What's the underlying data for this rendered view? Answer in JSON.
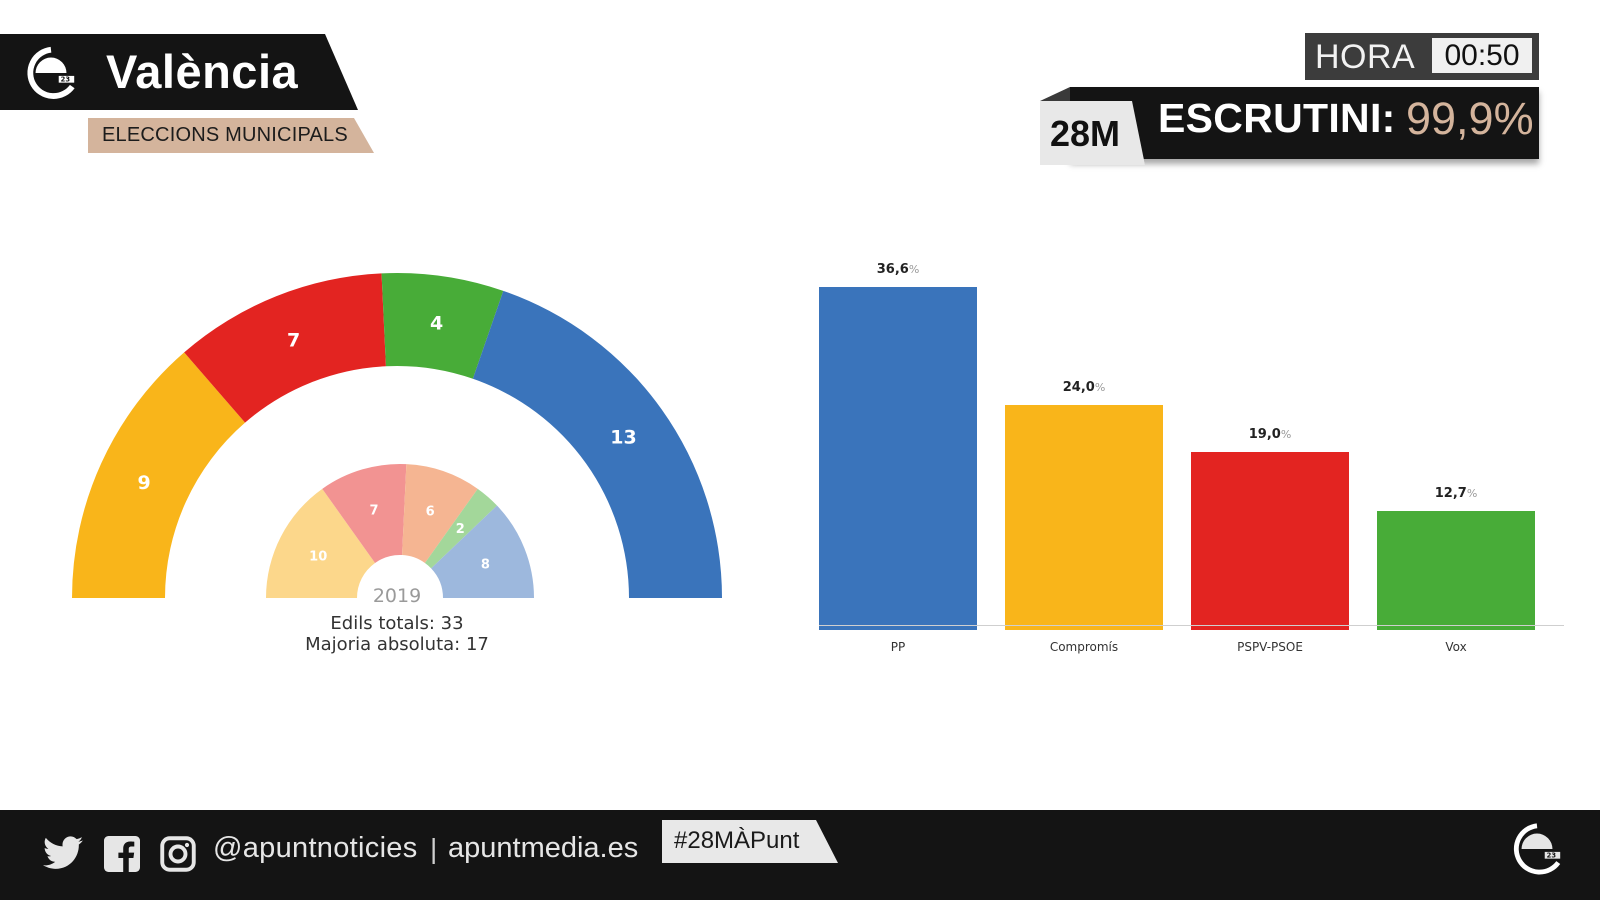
{
  "header": {
    "city": "València",
    "subtitle": "ELECCIONS MUNICIPALS",
    "hora_label": "HORA",
    "hora_time": "00:50",
    "election_tag": "28M",
    "escrutini_label": "ESCRUTINI:",
    "escrutini_value": "99,9%"
  },
  "hemicycle": {
    "current": [
      {
        "party": "Compromís",
        "seats": 9,
        "color": "#f9b51a"
      },
      {
        "party": "PSPV-PSOE",
        "seats": 7,
        "color": "#e32421"
      },
      {
        "party": "Vox",
        "seats": 4,
        "color": "#48ac38"
      },
      {
        "party": "PP",
        "seats": 13,
        "color": "#3a74bb"
      }
    ],
    "previous": [
      {
        "seats": 10,
        "color": "#fcd78b"
      },
      {
        "seats": 7,
        "color": "#f29392"
      },
      {
        "seats": 6,
        "color": "#f5b592"
      },
      {
        "seats": 2,
        "color": "#a3d79a"
      },
      {
        "seats": 8,
        "color": "#9db8dd"
      }
    ],
    "previous_year": "2019",
    "totals_text": "Edils totals: 33",
    "majority_text": "Majoria absoluta: 17"
  },
  "chart_data": [
    {
      "type": "pie",
      "title": "Regidors 2023 (hemicicle)",
      "categories": [
        "Compromís",
        "PSPV-PSOE",
        "Vox",
        "PP"
      ],
      "values": [
        9,
        7,
        4,
        13
      ],
      "total": 33,
      "majority": 17
    },
    {
      "type": "pie",
      "title": "Regidors 2019 (hemicicle)",
      "values": [
        10,
        7,
        6,
        2,
        8
      ],
      "total": 33
    },
    {
      "type": "bar",
      "title": "",
      "categories": [
        "PP",
        "Compromís",
        "PSPV-PSOE",
        "Vox"
      ],
      "values": [
        36.6,
        24.0,
        19.0,
        12.7
      ],
      "labels": [
        "36,6",
        "24,0",
        "19,0",
        "12,7"
      ],
      "unit": "%",
      "colors": [
        "#3a74bb",
        "#f9b51a",
        "#e32421",
        "#48ac38"
      ],
      "xlabel": "",
      "ylabel": "",
      "ylim": [
        0,
        40
      ],
      "grid": false
    }
  ],
  "bars": [
    {
      "label": "PP",
      "value": 36.6,
      "value_text": "36,6",
      "pct": "%",
      "color": "#3a74bb"
    },
    {
      "label": "Compromís",
      "value": 24.0,
      "value_text": "24,0",
      "pct": "%",
      "color": "#f9b51a"
    },
    {
      "label": "PSPV-PSOE",
      "value": 19.0,
      "value_text": "19,0",
      "pct": "%",
      "color": "#e32421"
    },
    {
      "label": "Vox",
      "value": 12.7,
      "value_text": "12,7",
      "pct": "%",
      "color": "#48ac38"
    }
  ],
  "footer": {
    "icons": [
      "twitter-icon",
      "facebook-icon",
      "instagram-icon"
    ],
    "handle": "@apuntnoticies",
    "separator": "|",
    "site": "apuntmedia.es",
    "hashtag": "#28MÀPunt"
  }
}
